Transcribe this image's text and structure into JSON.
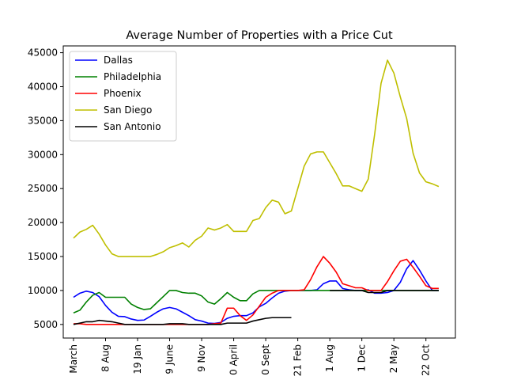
{
  "chart_data": {
    "type": "line",
    "title": "Average Number of Properties with a Price Cut",
    "xlabel": "",
    "ylabel": "",
    "x_tick_labels": [
      "March",
      "8 Aug",
      "19 Jan",
      "9 June",
      "9 Nov",
      "0 April",
      "0 Sept",
      "21 Feb",
      "1 Aug",
      "1 Dec",
      "2 May",
      "22 Oct"
    ],
    "x_tick_index": [
      0,
      5,
      10,
      15,
      20,
      25,
      30,
      35,
      40,
      45,
      50,
      55
    ],
    "ylim": [
      3000,
      46000
    ],
    "y_ticks": [
      5000,
      10000,
      15000,
      20000,
      25000,
      30000,
      35000,
      40000,
      45000
    ],
    "y_tick_labels": [
      "5000",
      "10000",
      "15000",
      "20000",
      "25000",
      "30000",
      "35000",
      "40000",
      "45000"
    ],
    "xlim": [
      -1.6,
      59.6
    ],
    "grid": false,
    "legend_position": "top-left",
    "series": [
      {
        "name": "Dallas",
        "color": "#0000ff",
        "start": 0,
        "values": [
          9000,
          9600,
          9900,
          9700,
          9100,
          7800,
          6800,
          6200,
          6150,
          5800,
          5600,
          5650,
          6200,
          6800,
          7300,
          7500,
          7300,
          6800,
          6300,
          5700,
          5500,
          5200,
          5150,
          5300,
          5900,
          6200,
          6300,
          6300,
          6700,
          7600,
          8100,
          8900,
          9600,
          9900,
          10000,
          10000,
          10000,
          10000,
          10100,
          11000,
          11400,
          11400,
          10300,
          10100,
          10000,
          10000,
          10100,
          9600,
          9600,
          9700,
          10000,
          11200,
          13200,
          14400,
          13000,
          11400,
          10000,
          10000
        ]
      },
      {
        "name": "Philadelphia",
        "color": "#008000",
        "start": 0,
        "values": [
          6700,
          7100,
          8300,
          9300,
          9700,
          9000,
          9000,
          9000,
          9000,
          8000,
          7500,
          7200,
          7300,
          8200,
          9100,
          10000,
          10000,
          9700,
          9600,
          9600,
          9200,
          8300,
          8000,
          8800,
          9700,
          9000,
          8500,
          8500,
          9500,
          10000,
          10000,
          10000,
          10000,
          10000,
          10000,
          10000,
          10000,
          10000,
          10000,
          10000,
          10000,
          10000,
          10000,
          10000,
          10000,
          10000,
          10000,
          10000,
          10000,
          10000,
          10000,
          10000,
          10000,
          10000,
          10000,
          10000,
          10000,
          10000
        ]
      },
      {
        "name": "Phoenix",
        "color": "#ff0000",
        "start": 0,
        "values": [
          5100,
          5100,
          5000,
          5000,
          5000,
          5000,
          5000,
          5000,
          5000,
          5000,
          5000,
          5000,
          5000,
          5000,
          5000,
          5000,
          5000,
          5000,
          5000,
          5000,
          5000,
          5000,
          5100,
          5200,
          7400,
          7400,
          6300,
          5600,
          6400,
          7700,
          9000,
          9600,
          10000,
          10000,
          10000,
          10000,
          10100,
          11600,
          13500,
          15000,
          14000,
          12700,
          11000,
          10700,
          10400,
          10400,
          10000,
          10000,
          10000,
          11300,
          12900,
          14300,
          14600,
          13400,
          12100,
          10700,
          10300,
          10300
        ]
      },
      {
        "name": "San Diego",
        "color": "#bfbf00",
        "start": 0,
        "values": [
          17700,
          18600,
          19000,
          19600,
          18300,
          16700,
          15400,
          15000,
          15000,
          15000,
          15000,
          15000,
          15000,
          15300,
          15700,
          16300,
          16600,
          17000,
          16400,
          17400,
          18000,
          19200,
          18900,
          19200,
          19700,
          18700,
          18700,
          18700,
          20300,
          20600,
          22200,
          23300,
          23000,
          21300,
          21700,
          25000,
          28300,
          30100,
          30400,
          30400,
          28800,
          27200,
          25400,
          25400,
          25000,
          24600,
          26400,
          33000,
          40500,
          43900,
          42000,
          38500,
          35300,
          30200,
          27300,
          26000,
          25700,
          25300
        ]
      },
      {
        "name": "San Antonio",
        "color": "#000000",
        "start": 0,
        "values": [
          5000,
          5200,
          5400,
          5400,
          5600,
          5500,
          5400,
          5200,
          5000,
          5000,
          5000,
          5000,
          5000,
          5000,
          5000,
          5100,
          5100,
          5100,
          5000,
          5000,
          5000,
          5000,
          5000,
          5000,
          5200,
          5200,
          5200,
          5200,
          5500,
          5700,
          5900,
          6000,
          6000,
          6000,
          6000
        ]
      },
      {
        "name": "",
        "color": "#000000",
        "start": 40,
        "values": [
          10000,
          10000,
          10000,
          10000,
          10000,
          10000,
          9700,
          9700,
          9700,
          10000,
          10000,
          10000,
          10000,
          10000,
          10000,
          10000,
          10000,
          10000
        ]
      }
    ]
  }
}
